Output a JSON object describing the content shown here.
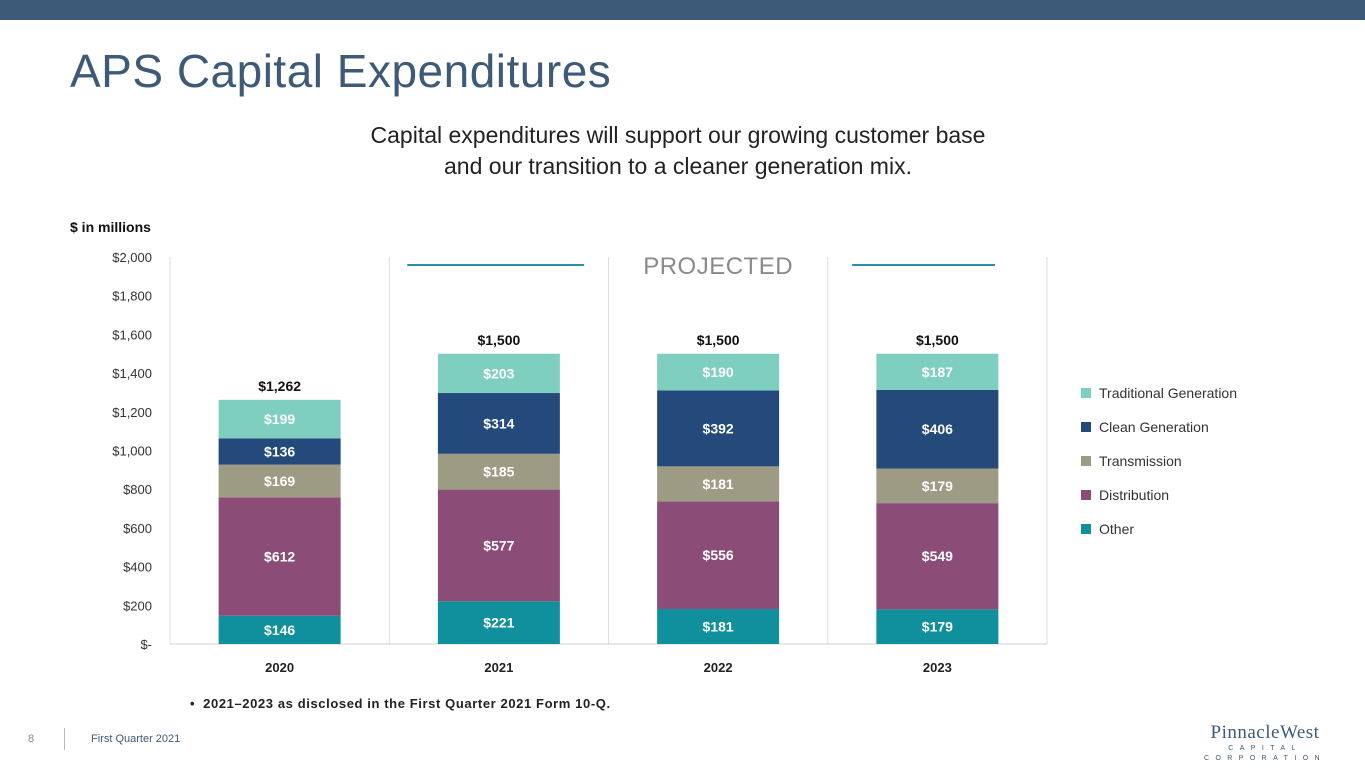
{
  "page": {
    "title": "APS Capital Expenditures",
    "subtitle_line1": "Capital expenditures will support our growing customer base",
    "subtitle_line2": "and our transition to a cleaner generation mix.",
    "unit_label": "$ in millions",
    "footnote": "2021–2023  as disclosed  in  the  First  Quarter  2021  Form  10-Q.",
    "footnote_bullet": "•",
    "page_number": "8",
    "footer_text": "First Quarter 2021",
    "logo_name": "PinnacleWest",
    "logo_sub": "CAPITAL CORPORATION"
  },
  "colors": {
    "brand": "#3d5a78",
    "projected_line": "#2a8fab"
  },
  "chart_data": {
    "type": "bar",
    "stacked": true,
    "categories": [
      "2020",
      "2021",
      "2022",
      "2023"
    ],
    "series": [
      {
        "name": "Other",
        "values": [
          146,
          221,
          181,
          179
        ],
        "labels": [
          "$146",
          "$221",
          "$181",
          "$179"
        ],
        "color": "#10909c"
      },
      {
        "name": "Distribution",
        "values": [
          612,
          577,
          556,
          549
        ],
        "labels": [
          "$612",
          "$577",
          "$556",
          "$549"
        ],
        "color": "#8b4d77"
      },
      {
        "name": "Transmission",
        "values": [
          169,
          185,
          181,
          179
        ],
        "labels": [
          "$169",
          "$185",
          "$181",
          "$179"
        ],
        "color": "#9e9b85"
      },
      {
        "name": "Clean Generation",
        "values": [
          136,
          314,
          392,
          406
        ],
        "labels": [
          "$136",
          "$314",
          "$392",
          "$406"
        ],
        "color": "#234a7a"
      },
      {
        "name": "Traditional Generation",
        "values": [
          199,
          203,
          190,
          187
        ],
        "labels": [
          "$199",
          "$203",
          "$190",
          "$187"
        ],
        "color": "#7fcfc0"
      }
    ],
    "totals": [
      1262,
      1500,
      1500,
      1500
    ],
    "total_labels": [
      "$1,262",
      "$1,500",
      "$1,500",
      "$1,500"
    ],
    "ylim": [
      0,
      2000
    ],
    "yticks": [
      0,
      200,
      400,
      600,
      800,
      1000,
      1200,
      1400,
      1600,
      1800,
      2000
    ],
    "ytick_labels": [
      "$-",
      "$200",
      "$400",
      "$600",
      "$800",
      "$1,000",
      "$1,200",
      "$1,400",
      "$1,600",
      "$1,800",
      "$2,000"
    ],
    "projected_label": "PROJECTED",
    "projected_categories": [
      "2021",
      "2022",
      "2023"
    ],
    "legend_position": "right",
    "grid": false
  }
}
